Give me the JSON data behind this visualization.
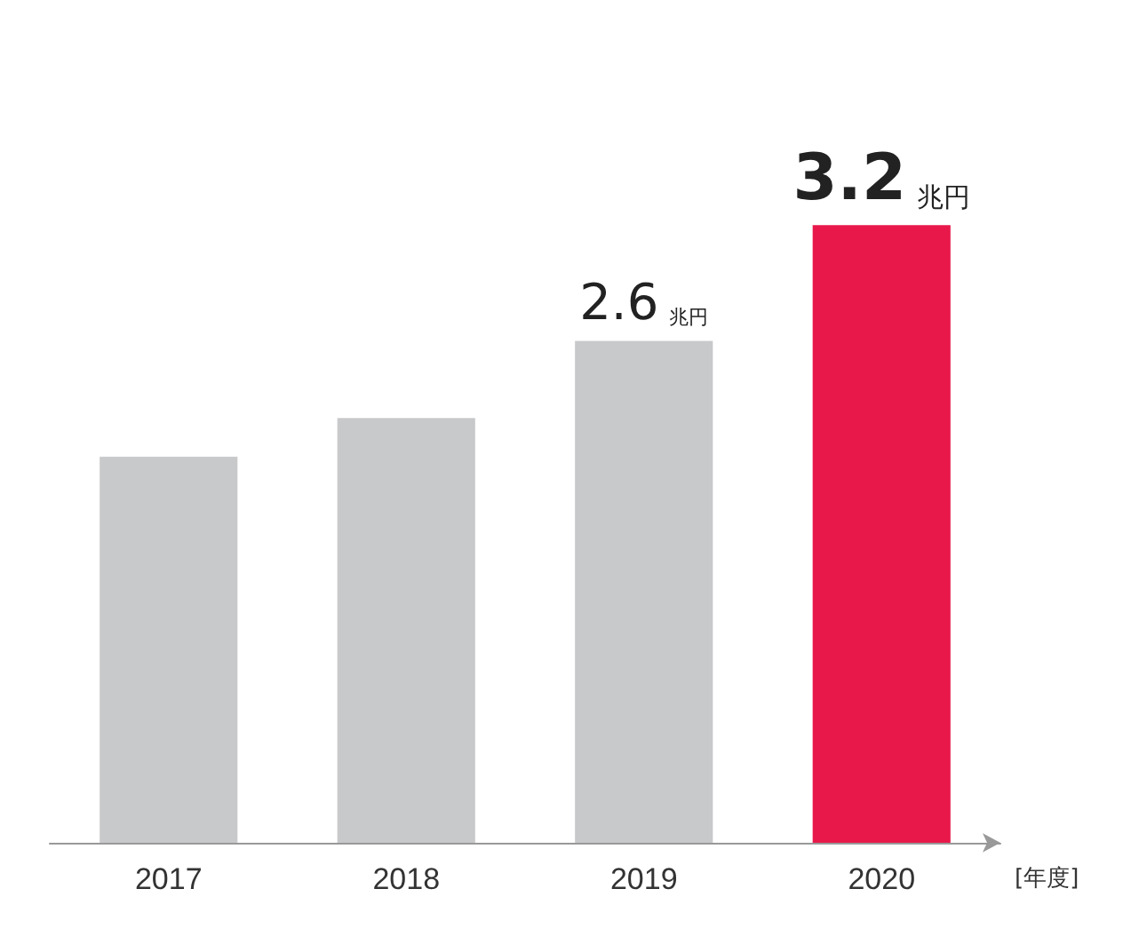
{
  "chart_data": {
    "type": "bar",
    "xlabel": "[年度]",
    "categories": [
      "2017",
      "2018",
      "2019",
      "2020"
    ],
    "values": [
      2.0,
      2.2,
      2.6,
      3.2
    ],
    "colors": [
      "#c8c9cb",
      "#c8c9cb",
      "#c8c9cb",
      "#e8194a"
    ],
    "value_labels": [
      null,
      null,
      "2.6兆円",
      "3.2兆円"
    ],
    "grid": false
  }
}
